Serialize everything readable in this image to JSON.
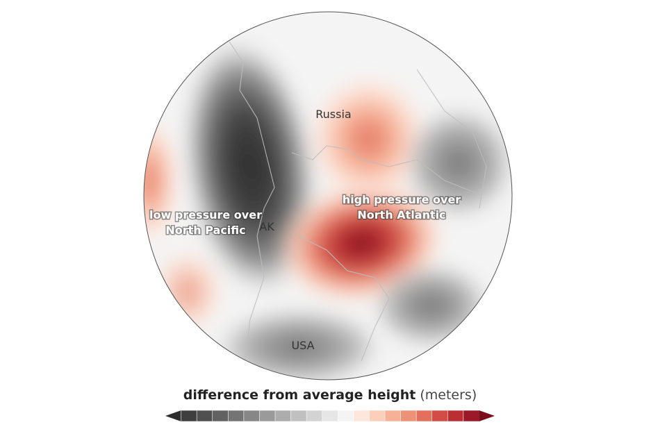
{
  "map": {
    "labels": {
      "russia": "Russia",
      "ak": "AK",
      "usa": "USA",
      "low_pressure": [
        "low pressure over",
        "North Pacific"
      ],
      "high_pressure": [
        "high pressure over",
        "North Atlantic"
      ]
    },
    "legend": {
      "title": "difference from average height",
      "unit": "(meters)",
      "colors": [
        "#2e2e2e",
        "#3f3f3f",
        "#505050",
        "#626262",
        "#747474",
        "#878787",
        "#9a9a9a",
        "#adadad",
        "#c0c0c0",
        "#d3d3d3",
        "#e6e6e6",
        "#f4f4f4",
        "#fde6dc",
        "#fbcfba",
        "#f6b196",
        "#ee9277",
        "#e2705c",
        "#d14d45",
        "#bb2f33",
        "#9c1a27",
        "#7b0d1d"
      ]
    }
  }
}
